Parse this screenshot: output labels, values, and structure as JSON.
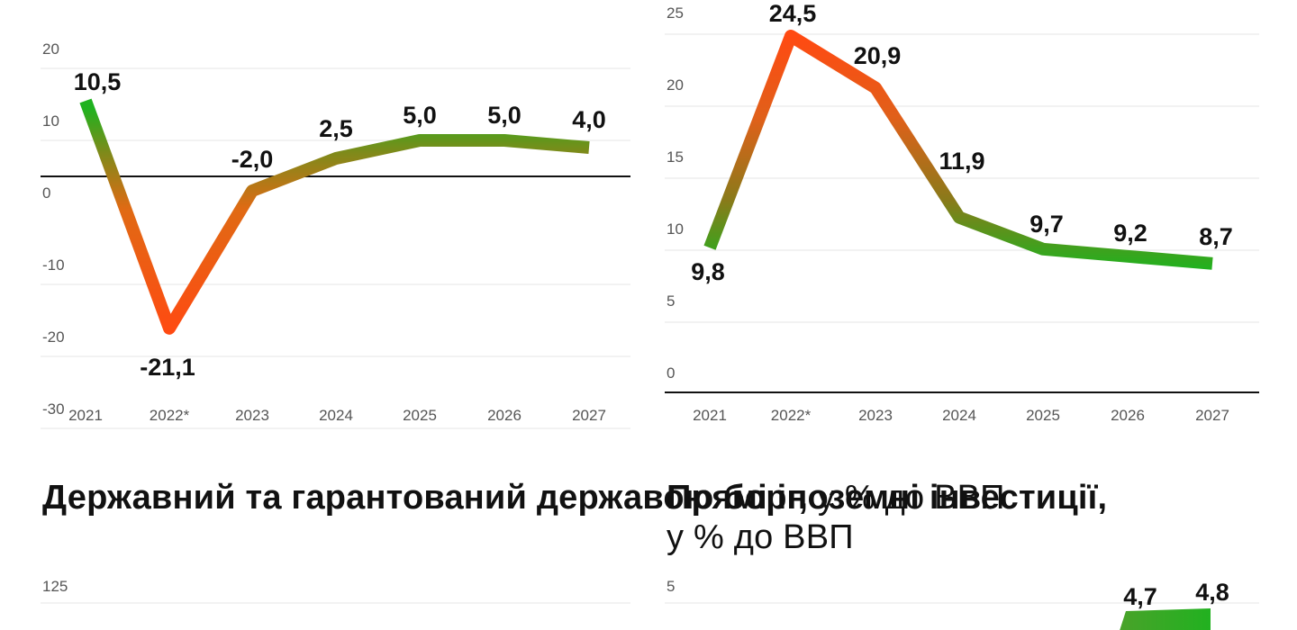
{
  "colors": {
    "high": "#ff4a12",
    "low": "#1fb21f",
    "grid": "#e4e4e4",
    "axis": "#111111"
  },
  "chart_data": [
    {
      "type": "line",
      "title": "",
      "x": [
        "2021",
        "2022*",
        "2023",
        "2024",
        "2025",
        "2026",
        "2027"
      ],
      "values": [
        10.5,
        -21.1,
        -2.0,
        2.5,
        5.0,
        5.0,
        4.0
      ],
      "labels": [
        "10,5",
        "-21,1",
        "-2,0",
        "2,5",
        "5,0",
        "5,0",
        "4,0"
      ],
      "yticks": [
        "20",
        "10",
        "0",
        "-10",
        "-20",
        "-30"
      ],
      "ylim": [
        -30,
        20
      ],
      "grid": true
    },
    {
      "type": "line",
      "title": "",
      "x": [
        "2021",
        "2022*",
        "2023",
        "2024",
        "2025",
        "2026",
        "2027"
      ],
      "values": [
        9.8,
        24.5,
        20.9,
        11.9,
        9.7,
        9.2,
        8.7
      ],
      "labels": [
        "9,8",
        "24,5",
        "20,9",
        "11,9",
        "9,7",
        "9,2",
        "8,7"
      ],
      "yticks": [
        "25",
        "20",
        "15",
        "10",
        "5",
        "0"
      ],
      "ylim": [
        0,
        25
      ],
      "grid": true
    },
    {
      "type": "line",
      "title_bold": "Державний та гарантований державою борг,",
      "title_rest": "у % до ВВП",
      "yticks": [
        "125"
      ],
      "values": [],
      "labels": []
    },
    {
      "type": "line",
      "title_bold": "Прямі іноземні інвестиції,",
      "title_rest": "у % до ВВП",
      "yticks": [
        "5"
      ],
      "labels": [
        "4,7",
        "4,8"
      ],
      "values": [
        4.7,
        4.8
      ]
    }
  ]
}
